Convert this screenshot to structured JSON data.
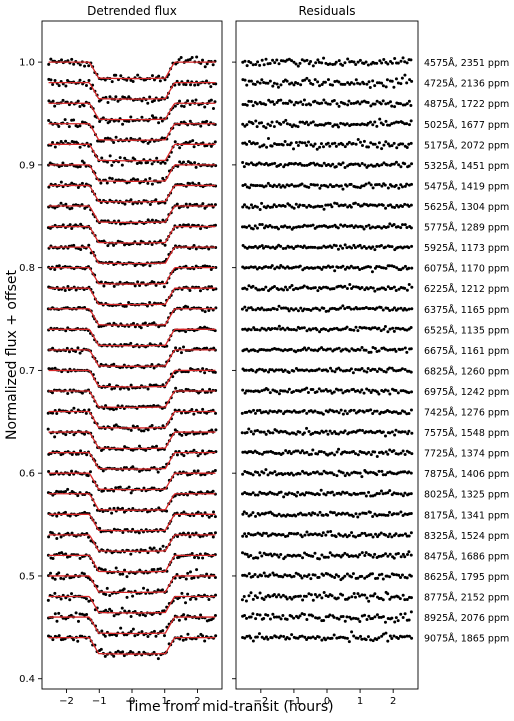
{
  "chart_data": {
    "type": "scatter",
    "ylabel": "Normalized flux + offset",
    "xlabel": "Time from mid-transit (hours)",
    "xlim": [
      -2.75,
      2.75
    ],
    "ylim": [
      0.39,
      1.04
    ],
    "xticks": [
      -2,
      -1,
      0,
      1,
      2
    ],
    "yticks": [
      0.4,
      0.5,
      0.6,
      0.7,
      0.8,
      0.9,
      1.0
    ],
    "panels": [
      {
        "title": "Detrended flux"
      },
      {
        "title": "Residuals"
      }
    ],
    "transit": {
      "t_contact_in": -1.3,
      "t_contact_out": 1.3,
      "ingress_duration": 0.28,
      "depth": 0.016
    },
    "series_offsets": [
      1.0,
      0.98,
      0.96,
      0.94,
      0.92,
      0.9,
      0.88,
      0.86,
      0.84,
      0.82,
      0.8,
      0.78,
      0.76,
      0.74,
      0.72,
      0.7,
      0.68,
      0.66,
      0.64,
      0.62,
      0.6,
      0.58,
      0.56,
      0.54,
      0.52,
      0.5,
      0.48,
      0.46,
      0.44
    ],
    "labels": [
      "4575Å, 2351 ppm",
      "4725Å, 2136 ppm",
      "4875Å, 1722 ppm",
      "5025Å, 1677 ppm",
      "5175Å, 2072 ppm",
      "5325Å, 1451 ppm",
      "5475Å, 1419 ppm",
      "5625Å, 1304 ppm",
      "5775Å, 1289 ppm",
      "5925Å, 1173 ppm",
      "6075Å, 1170 ppm",
      "6225Å, 1212 ppm",
      "6375Å, 1165 ppm",
      "6525Å, 1135 ppm",
      "6675Å, 1161 ppm",
      "6825Å, 1260 ppm",
      "6975Å, 1242 ppm",
      "7425Å, 1276 ppm",
      "7575Å, 1548 ppm",
      "7725Å, 1374 ppm",
      "7875Å, 1406 ppm",
      "8025Å, 1325 ppm",
      "8175Å, 1341 ppm",
      "8325Å, 1524 ppm",
      "8475Å, 1686 ppm",
      "8625Å, 1795 ppm",
      "8775Å, 2152 ppm",
      "8925Å, 2076 ppm",
      "9075Å, 1865 ppm"
    ],
    "model_color": "#d62728",
    "point_color": "#000000",
    "grid": false,
    "legend": "none"
  }
}
